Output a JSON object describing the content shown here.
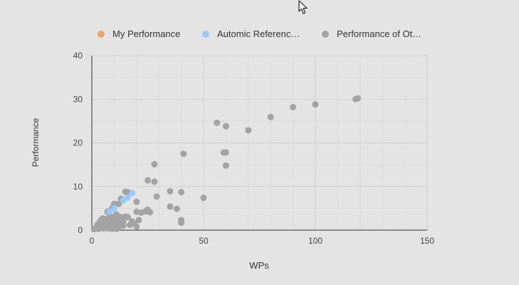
{
  "colors": {
    "background": "#e4e4e4",
    "grid": "#d2d2d2",
    "axis": "#333333",
    "my_performance": "#e8a56f",
    "automic_reference": "#99c9f5",
    "others": "#a3a3a3"
  },
  "legend": [
    {
      "label": "My Performance",
      "color": "#e8a56f"
    },
    {
      "label": "Automic Referenc…",
      "color": "#99c9f5"
    },
    {
      "label": "Performance of Ot…",
      "color": "#a3a3a3"
    }
  ],
  "chart_data": {
    "type": "scatter",
    "title": "",
    "xlabel": "WPs",
    "ylabel": "Performance",
    "xlim": [
      0,
      150
    ],
    "ylim": [
      0,
      40
    ],
    "xticks": [
      "0",
      "50",
      "100",
      "150"
    ],
    "yticks": [
      "0",
      "10",
      "20",
      "30",
      "40"
    ],
    "grid": true,
    "legend_position": "top",
    "series": [
      {
        "name": "My Performance",
        "color": "#e8a56f",
        "points": []
      },
      {
        "name": "Automic Referenc…",
        "color": "#99c9f5",
        "points": [
          [
            18,
            8.5
          ],
          [
            16,
            7.5
          ],
          [
            14,
            6.8
          ],
          [
            10,
            5.0
          ],
          [
            8,
            4.2
          ]
        ]
      },
      {
        "name": "Performance of Ot…",
        "color": "#a3a3a3",
        "points": [
          [
            118,
            30.0
          ],
          [
            119,
            30.2
          ],
          [
            100,
            28.8
          ],
          [
            90,
            28.2
          ],
          [
            80,
            25.9
          ],
          [
            70,
            22.9
          ],
          [
            56,
            24.6
          ],
          [
            60,
            23.8
          ],
          [
            59,
            17.8
          ],
          [
            60,
            17.8
          ],
          [
            41,
            17.5
          ],
          [
            60,
            14.8
          ],
          [
            28,
            15.1
          ],
          [
            25,
            11.4
          ],
          [
            28,
            11.1
          ],
          [
            35,
            8.9
          ],
          [
            40,
            8.7
          ],
          [
            15,
            8.8
          ],
          [
            16,
            8.7
          ],
          [
            13,
            7.2
          ],
          [
            29,
            7.7
          ],
          [
            50,
            7.4
          ],
          [
            20,
            6.5
          ],
          [
            10,
            6.0
          ],
          [
            12,
            6.0
          ],
          [
            35,
            5.4
          ],
          [
            38,
            4.9
          ],
          [
            25,
            4.7
          ],
          [
            24,
            4.3
          ],
          [
            22,
            4.0
          ],
          [
            26,
            4.1
          ],
          [
            20,
            4.2
          ],
          [
            9,
            5.0
          ],
          [
            7,
            4.2
          ],
          [
            11,
            3.6
          ],
          [
            40,
            2.3
          ],
          [
            40,
            1.7
          ],
          [
            15,
            3.1
          ],
          [
            16,
            3.0
          ],
          [
            13,
            3.0
          ],
          [
            21,
            2.3
          ],
          [
            18,
            2.0
          ],
          [
            19,
            1.5
          ],
          [
            17,
            1.2
          ],
          [
            20,
            0.8
          ],
          [
            14,
            1.0
          ],
          [
            12,
            1.5
          ],
          [
            10,
            2.0
          ],
          [
            9,
            2.8
          ],
          [
            8,
            3.2
          ],
          [
            7,
            2.5
          ],
          [
            6,
            2.0
          ],
          [
            5,
            1.6
          ],
          [
            4,
            1.2
          ],
          [
            3,
            0.9
          ],
          [
            2,
            0.5
          ],
          [
            1,
            0.2
          ],
          [
            1.5,
            0.4
          ],
          [
            3,
            0.3
          ],
          [
            4,
            2.3
          ],
          [
            5,
            2.7
          ],
          [
            6,
            0.5
          ],
          [
            7,
            0.4
          ],
          [
            8,
            0.8
          ],
          [
            9,
            1.4
          ],
          [
            10,
            0.6
          ],
          [
            11,
            1.1
          ],
          [
            12,
            2.4
          ],
          [
            13,
            1.8
          ],
          [
            11,
            0.3
          ],
          [
            6,
            1.3
          ],
          [
            5,
            0.4
          ],
          [
            8,
            1.9
          ],
          [
            14,
            2.0
          ],
          [
            9,
            0.3
          ],
          [
            2.5,
            1.2
          ],
          [
            3.5,
            1.8
          ],
          [
            10,
            3.0
          ],
          [
            12,
            0.8
          ],
          [
            7,
            1.6
          ]
        ]
      }
    ]
  }
}
